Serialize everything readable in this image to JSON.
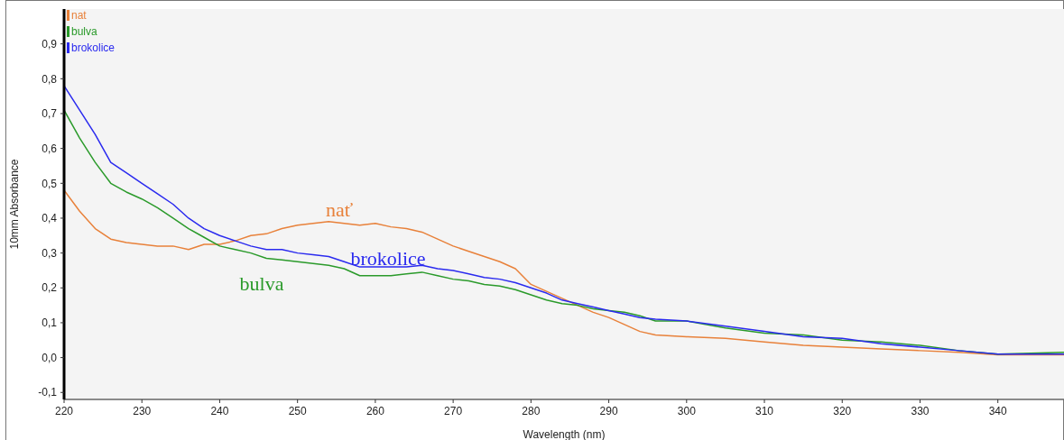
{
  "chart_data": {
    "type": "line",
    "xlabel": "Wavelength (nm)",
    "ylabel": "10mm Absorbance",
    "xlim": [
      220,
      348.5
    ],
    "xticks": [
      220,
      230,
      240,
      250,
      260,
      270,
      280,
      290,
      300,
      310,
      320,
      330,
      340
    ],
    "ylim": [
      -0.12,
      1.0
    ],
    "yticks": [
      {
        "value": -0.1,
        "label": "-0,1"
      },
      {
        "value": 0,
        "label": "0,0"
      },
      {
        "value": 0.1,
        "label": "0,1"
      },
      {
        "value": 0.2,
        "label": "0,2"
      },
      {
        "value": 0.3,
        "label": "0,3"
      },
      {
        "value": 0.4,
        "label": "0,4"
      },
      {
        "value": 0.5,
        "label": "0,5"
      },
      {
        "value": 0.6,
        "label": "0,6"
      },
      {
        "value": 0.7,
        "label": "0,7"
      },
      {
        "value": 0.8,
        "label": "0,8"
      },
      {
        "value": 0.9,
        "label": "0,9"
      }
    ],
    "grid": false,
    "legend": "top left",
    "marker": "none",
    "line_style": "solid",
    "x": [
      220,
      222,
      224,
      226,
      228,
      230,
      232,
      234,
      236,
      238,
      240,
      242,
      244,
      246,
      248,
      250,
      252,
      254,
      256,
      258,
      260,
      262,
      264,
      266,
      268,
      270,
      272,
      274,
      276,
      278,
      280,
      282,
      284,
      286,
      288,
      290,
      292,
      294,
      296,
      300,
      305,
      310,
      315,
      320,
      325,
      330,
      335,
      340,
      348.5
    ],
    "series": [
      {
        "name": "nat",
        "color": "#e8813a",
        "values": [
          0.48,
          0.42,
          0.37,
          0.34,
          0.33,
          0.325,
          0.32,
          0.32,
          0.31,
          0.325,
          0.325,
          0.335,
          0.35,
          0.355,
          0.37,
          0.38,
          0.385,
          0.39,
          0.385,
          0.38,
          0.385,
          0.375,
          0.37,
          0.36,
          0.34,
          0.32,
          0.305,
          0.29,
          0.275,
          0.255,
          0.21,
          0.19,
          0.17,
          0.15,
          0.13,
          0.115,
          0.095,
          0.075,
          0.065,
          0.06,
          0.055,
          0.045,
          0.035,
          0.03,
          0.025,
          0.02,
          0.015,
          0.008,
          0.008
        ]
      },
      {
        "name": "bulva",
        "color": "#2a9a2a",
        "values": [
          0.71,
          0.63,
          0.56,
          0.5,
          0.475,
          0.455,
          0.43,
          0.4,
          0.37,
          0.345,
          0.32,
          0.31,
          0.3,
          0.285,
          0.28,
          0.275,
          0.27,
          0.265,
          0.255,
          0.235,
          0.235,
          0.235,
          0.24,
          0.245,
          0.235,
          0.225,
          0.22,
          0.21,
          0.205,
          0.195,
          0.18,
          0.165,
          0.155,
          0.15,
          0.14,
          0.135,
          0.13,
          0.12,
          0.105,
          0.105,
          0.085,
          0.07,
          0.065,
          0.05,
          0.045,
          0.035,
          0.02,
          0.01,
          0.015
        ]
      },
      {
        "name": "brokolice",
        "color": "#2a2aef",
        "values": [
          0.78,
          0.71,
          0.64,
          0.56,
          0.53,
          0.5,
          0.47,
          0.44,
          0.4,
          0.37,
          0.35,
          0.335,
          0.32,
          0.31,
          0.31,
          0.3,
          0.295,
          0.29,
          0.275,
          0.26,
          0.26,
          0.26,
          0.26,
          0.265,
          0.255,
          0.25,
          0.24,
          0.23,
          0.225,
          0.215,
          0.2,
          0.185,
          0.165,
          0.155,
          0.145,
          0.135,
          0.125,
          0.115,
          0.11,
          0.105,
          0.09,
          0.075,
          0.06,
          0.055,
          0.04,
          0.03,
          0.02,
          0.01,
          0.01
        ]
      }
    ],
    "annotations": [
      "nať",
      "bulva",
      "brokolice"
    ]
  }
}
